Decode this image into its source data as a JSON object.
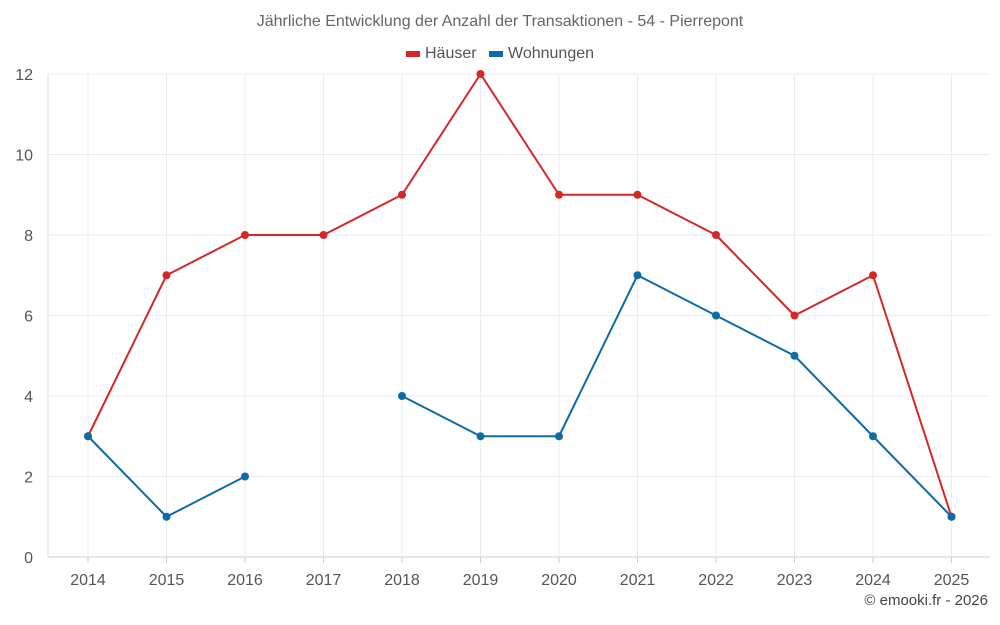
{
  "chart_data": {
    "type": "line",
    "title": "Jährliche Entwicklung der Anzahl der Transaktionen - 54 - Pierrepont",
    "categories": [
      "2014",
      "2015",
      "2016",
      "2017",
      "2018",
      "2019",
      "2020",
      "2021",
      "2022",
      "2023",
      "2024",
      "2025"
    ],
    "yticks": [
      "0",
      "2",
      "4",
      "6",
      "8",
      "10",
      "12"
    ],
    "ylim": [
      0,
      12
    ],
    "xlabel": "",
    "ylabel": "",
    "grid": true,
    "legend_position": "top-center",
    "series": [
      {
        "name": "Häuser",
        "color": "#d62728",
        "values": [
          3,
          7,
          8,
          8,
          9,
          12,
          9,
          9,
          8,
          6,
          7,
          1
        ]
      },
      {
        "name": "Wohnungen",
        "color": "#0f6ba8",
        "values": [
          3,
          1,
          2,
          null,
          4,
          3,
          3,
          7,
          6,
          5,
          3,
          1
        ]
      }
    ]
  },
  "credit": "© emooki.fr - 2026"
}
